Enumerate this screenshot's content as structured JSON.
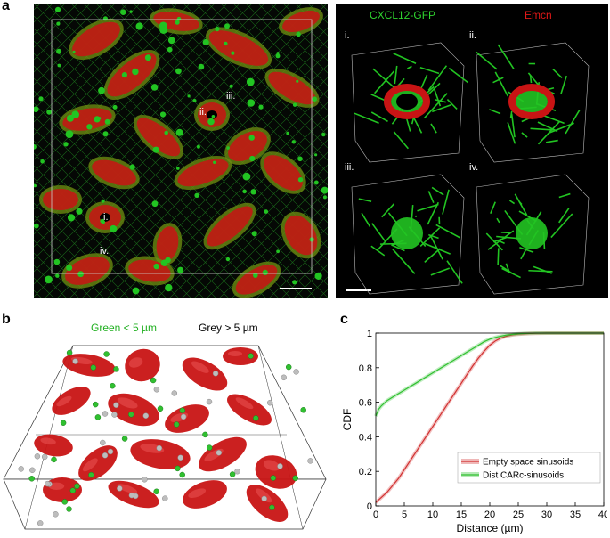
{
  "panel_a": {
    "letter": "a",
    "channel_green": "CXCL12-GFP",
    "channel_red": "Emcn",
    "main_labels": [
      "ii.",
      "iii.",
      "i.",
      "iv."
    ],
    "inset_labels": [
      "i.",
      "ii.",
      "iii.",
      "iv."
    ]
  },
  "panel_b": {
    "letter": "b",
    "legend_green": "Green < 5 µm",
    "legend_grey": "Grey > 5 µm"
  },
  "panel_c": {
    "letter": "c"
  },
  "colors": {
    "gfp": "#22c422",
    "emcn": "#c81414",
    "empty_space": "#d23030",
    "dist_carc": "#30c030",
    "grey_sphere": "#bdbdbd"
  },
  "chart_data": {
    "type": "line",
    "xlabel": "Distance (µm)",
    "ylabel": "CDF",
    "xlim": [
      0,
      40
    ],
    "ylim": [
      0,
      1
    ],
    "xticks": [
      0,
      5,
      10,
      15,
      20,
      25,
      30,
      35,
      40
    ],
    "yticks": [
      0,
      0.2,
      0.4,
      0.6,
      0.8,
      1
    ],
    "legend_position": "bottom-right",
    "grid": false,
    "series": [
      {
        "name": "Empty space sinusoids",
        "x": [
          0,
          1,
          2,
          3,
          4,
          5,
          6,
          7,
          8,
          9,
          10,
          11,
          12,
          13,
          14,
          15,
          16,
          17,
          18,
          19,
          20,
          21,
          22,
          23,
          24,
          25,
          26,
          27,
          28,
          30,
          32,
          35,
          40
        ],
        "y": [
          0.02,
          0.05,
          0.08,
          0.12,
          0.16,
          0.21,
          0.26,
          0.31,
          0.36,
          0.41,
          0.46,
          0.51,
          0.56,
          0.61,
          0.66,
          0.71,
          0.76,
          0.81,
          0.855,
          0.895,
          0.93,
          0.955,
          0.972,
          0.983,
          0.99,
          0.994,
          0.996,
          0.998,
          0.999,
          1.0,
          1.0,
          1.0,
          1.0
        ]
      },
      {
        "name": "Dist CARc-sinusoids",
        "x": [
          0,
          0.5,
          1,
          2,
          3,
          4,
          5,
          6,
          7,
          8,
          9,
          10,
          11,
          12,
          13,
          14,
          15,
          16,
          17,
          18,
          19,
          20,
          21,
          22,
          23,
          24,
          25,
          26,
          27,
          28,
          30,
          32,
          35,
          40
        ],
        "y": [
          0.52,
          0.56,
          0.58,
          0.61,
          0.63,
          0.65,
          0.67,
          0.69,
          0.71,
          0.73,
          0.75,
          0.77,
          0.79,
          0.81,
          0.83,
          0.85,
          0.87,
          0.89,
          0.91,
          0.93,
          0.95,
          0.965,
          0.975,
          0.983,
          0.989,
          0.993,
          0.996,
          0.998,
          0.999,
          1.0,
          1.0,
          1.0,
          1.0,
          1.0
        ]
      }
    ]
  }
}
